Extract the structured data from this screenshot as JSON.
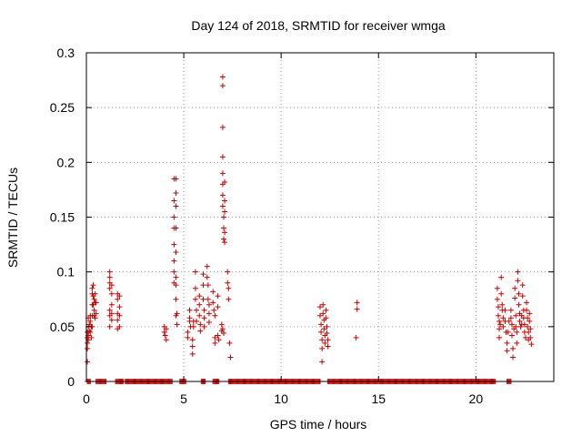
{
  "chart_data": {
    "type": "scatter",
    "title": "Day 124 of 2018, SRMTID for receiver wmga",
    "xlabel": "GPS time / hours",
    "ylabel": "SRMTID / TECUs",
    "xlim": [
      0,
      24
    ],
    "ylim": [
      0,
      0.3
    ],
    "xticks": [
      0,
      5,
      10,
      15,
      20
    ],
    "xtick_labels": [
      "0",
      "5",
      "10",
      "15",
      "20"
    ],
    "yticks": [
      0,
      0.05,
      0.1,
      0.15,
      0.2,
      0.25,
      0.3
    ],
    "ytick_labels": [
      "0",
      "0.05",
      "0.1",
      "0.15",
      "0.2",
      "0.25",
      "0.3"
    ],
    "grid": true,
    "marker": "+",
    "color": "#cc0000",
    "series": [
      {
        "name": "SRMTID",
        "points": [
          [
            0.05,
            0.045
          ],
          [
            0.05,
            0.04
          ],
          [
            0.05,
            0.035
          ],
          [
            0.05,
            0.03
          ],
          [
            0.05,
            0.018
          ],
          [
            0.1,
            0.058
          ],
          [
            0.1,
            0.05
          ],
          [
            0.1,
            0.042
          ],
          [
            0.1,
            0.038
          ],
          [
            0.15,
            0.052
          ],
          [
            0.15,
            0.046
          ],
          [
            0.2,
            0.06
          ],
          [
            0.2,
            0.055
          ],
          [
            0.2,
            0.045
          ],
          [
            0.25,
            0.05
          ],
          [
            0.25,
            0.04
          ],
          [
            0.3,
            0.085
          ],
          [
            0.3,
            0.08
          ],
          [
            0.3,
            0.07
          ],
          [
            0.3,
            0.06
          ],
          [
            0.3,
            0.05
          ],
          [
            0.35,
            0.088
          ],
          [
            0.35,
            0.078
          ],
          [
            0.35,
            0.07
          ],
          [
            0.4,
            0.075
          ],
          [
            0.4,
            0.065
          ],
          [
            0.4,
            0.06
          ],
          [
            0.45,
            0.08
          ],
          [
            0.45,
            0.072
          ],
          [
            0.45,
            0.058
          ],
          [
            0.5,
            0.072
          ],
          [
            0.5,
            0.062
          ],
          [
            1.2,
            0.1
          ],
          [
            1.2,
            0.095
          ],
          [
            1.2,
            0.09
          ],
          [
            1.2,
            0.085
          ],
          [
            1.2,
            0.065
          ],
          [
            1.2,
            0.06
          ],
          [
            1.2,
            0.05
          ],
          [
            1.3,
            0.088
          ],
          [
            1.3,
            0.08
          ],
          [
            1.3,
            0.07
          ],
          [
            1.3,
            0.062
          ],
          [
            1.3,
            0.056
          ],
          [
            1.6,
            0.08
          ],
          [
            1.6,
            0.075
          ],
          [
            1.6,
            0.062
          ],
          [
            1.6,
            0.056
          ],
          [
            1.6,
            0.048
          ],
          [
            1.7,
            0.078
          ],
          [
            1.7,
            0.068
          ],
          [
            1.7,
            0.06
          ],
          [
            1.7,
            0.05
          ],
          [
            4.0,
            0.05
          ],
          [
            4.0,
            0.045
          ],
          [
            4.05,
            0.042
          ],
          [
            4.1,
            0.048
          ],
          [
            4.1,
            0.038
          ],
          [
            4.5,
            0.185
          ],
          [
            4.5,
            0.165
          ],
          [
            4.5,
            0.15
          ],
          [
            4.5,
            0.14
          ],
          [
            4.5,
            0.125
          ],
          [
            4.5,
            0.11
          ],
          [
            4.5,
            0.1
          ],
          [
            4.5,
            0.09
          ],
          [
            4.6,
            0.185
          ],
          [
            4.6,
            0.172
          ],
          [
            4.6,
            0.16
          ],
          [
            4.6,
            0.14
          ],
          [
            4.6,
            0.118
          ],
          [
            4.6,
            0.095
          ],
          [
            4.6,
            0.088
          ],
          [
            4.6,
            0.075
          ],
          [
            4.6,
            0.06
          ],
          [
            4.65,
            0.062
          ],
          [
            4.65,
            0.052
          ],
          [
            5.2,
            0.045
          ],
          [
            5.2,
            0.04
          ],
          [
            5.3,
            0.065
          ],
          [
            5.3,
            0.058
          ],
          [
            5.3,
            0.055
          ],
          [
            5.35,
            0.05
          ],
          [
            5.45,
            0.038
          ],
          [
            5.45,
            0.032
          ],
          [
            5.45,
            0.025
          ],
          [
            5.5,
            0.055
          ],
          [
            5.5,
            0.05
          ],
          [
            5.6,
            0.1
          ],
          [
            5.6,
            0.085
          ],
          [
            5.6,
            0.075
          ],
          [
            5.65,
            0.065
          ],
          [
            5.65,
            0.055
          ],
          [
            5.8,
            0.078
          ],
          [
            5.8,
            0.07
          ],
          [
            5.8,
            0.06
          ],
          [
            5.85,
            0.052
          ],
          [
            5.85,
            0.046
          ],
          [
            6.0,
            0.098
          ],
          [
            6.0,
            0.088
          ],
          [
            6.0,
            0.075
          ],
          [
            6.05,
            0.065
          ],
          [
            6.05,
            0.058
          ],
          [
            6.05,
            0.05
          ],
          [
            6.2,
            0.105
          ],
          [
            6.2,
            0.095
          ],
          [
            6.25,
            0.088
          ],
          [
            6.25,
            0.075
          ],
          [
            6.3,
            0.07
          ],
          [
            6.3,
            0.062
          ],
          [
            6.3,
            0.054
          ],
          [
            6.5,
            0.082
          ],
          [
            6.5,
            0.072
          ],
          [
            6.55,
            0.065
          ],
          [
            6.6,
            0.06
          ],
          [
            6.6,
            0.04
          ],
          [
            6.6,
            0.035
          ],
          [
            6.75,
            0.078
          ],
          [
            6.75,
            0.068
          ],
          [
            6.75,
            0.042
          ],
          [
            6.8,
            0.038
          ],
          [
            7.0,
            0.278
          ],
          [
            7.0,
            0.27
          ],
          [
            7.0,
            0.232
          ],
          [
            7.0,
            0.205
          ],
          [
            7.0,
            0.19
          ],
          [
            7.0,
            0.18
          ],
          [
            7.0,
            0.17
          ],
          [
            7.0,
            0.16
          ],
          [
            7.05,
            0.15
          ],
          [
            7.05,
            0.14
          ],
          [
            7.05,
            0.13
          ],
          [
            6.95,
            0.052
          ],
          [
            6.95,
            0.046
          ],
          [
            7.0,
            0.048
          ],
          [
            7.05,
            0.044
          ],
          [
            7.1,
            0.182
          ],
          [
            7.1,
            0.165
          ],
          [
            7.1,
            0.155
          ],
          [
            7.1,
            0.136
          ],
          [
            7.1,
            0.127
          ],
          [
            7.25,
            0.1
          ],
          [
            7.25,
            0.09
          ],
          [
            7.3,
            0.085
          ],
          [
            7.3,
            0.075
          ],
          [
            7.35,
            0.035
          ],
          [
            7.4,
            0.022
          ],
          [
            12.0,
            0.068
          ],
          [
            12.0,
            0.06
          ],
          [
            12.05,
            0.052
          ],
          [
            12.05,
            0.045
          ],
          [
            12.1,
            0.038
          ],
          [
            12.1,
            0.03
          ],
          [
            12.1,
            0.018
          ],
          [
            12.15,
            0.07
          ],
          [
            12.15,
            0.062
          ],
          [
            12.2,
            0.056
          ],
          [
            12.2,
            0.048
          ],
          [
            12.25,
            0.042
          ],
          [
            12.25,
            0.035
          ],
          [
            12.3,
            0.065
          ],
          [
            12.3,
            0.058
          ],
          [
            12.35,
            0.05
          ],
          [
            12.35,
            0.044
          ],
          [
            12.4,
            0.038
          ],
          [
            12.4,
            0.032
          ],
          [
            13.9,
            0.072
          ],
          [
            13.9,
            0.066
          ],
          [
            13.85,
            0.04
          ],
          [
            21.1,
            0.085
          ],
          [
            21.1,
            0.075
          ],
          [
            21.15,
            0.068
          ],
          [
            21.15,
            0.06
          ],
          [
            21.2,
            0.055
          ],
          [
            21.2,
            0.048
          ],
          [
            21.2,
            0.04
          ],
          [
            21.3,
            0.095
          ],
          [
            21.3,
            0.08
          ],
          [
            21.35,
            0.07
          ],
          [
            21.35,
            0.065
          ],
          [
            21.4,
            0.058
          ],
          [
            21.4,
            0.05
          ],
          [
            21.5,
            0.065
          ],
          [
            21.5,
            0.055
          ],
          [
            21.55,
            0.045
          ],
          [
            21.6,
            0.035
          ],
          [
            21.6,
            0.028
          ],
          [
            21.8,
            0.065
          ],
          [
            21.8,
            0.058
          ],
          [
            21.85,
            0.052
          ],
          [
            21.85,
            0.042
          ],
          [
            21.9,
            0.03
          ],
          [
            21.9,
            0.022
          ],
          [
            22.0,
            0.085
          ],
          [
            22.0,
            0.076
          ],
          [
            22.05,
            0.06
          ],
          [
            22.05,
            0.05
          ],
          [
            22.1,
            0.045
          ],
          [
            22.1,
            0.035
          ],
          [
            22.15,
            0.1
          ],
          [
            22.15,
            0.092
          ],
          [
            22.2,
            0.08
          ],
          [
            22.2,
            0.07
          ],
          [
            22.25,
            0.062
          ],
          [
            22.25,
            0.055
          ],
          [
            22.3,
            0.05
          ],
          [
            22.4,
            0.088
          ],
          [
            22.4,
            0.078
          ],
          [
            22.45,
            0.065
          ],
          [
            22.45,
            0.058
          ],
          [
            22.5,
            0.052
          ],
          [
            22.5,
            0.045
          ],
          [
            22.55,
            0.04
          ],
          [
            22.6,
            0.072
          ],
          [
            22.6,
            0.065
          ],
          [
            22.65,
            0.058
          ],
          [
            22.65,
            0.05
          ],
          [
            22.7,
            0.045
          ],
          [
            22.7,
            0.038
          ],
          [
            22.75,
            0.062
          ],
          [
            22.75,
            0.055
          ],
          [
            22.8,
            0.048
          ],
          [
            22.8,
            0.04
          ],
          [
            22.85,
            0.034
          ],
          [
            22.35,
            0.06
          ],
          [
            22.35,
            0.052
          ],
          [
            21.95,
            0.048
          ],
          [
            21.7,
            0.055
          ],
          [
            21.65,
            0.045
          ],
          [
            21.25,
            0.052
          ]
        ],
        "zero_ranges": [
          [
            0.05,
            0.2
          ],
          [
            0.5,
            1.0
          ],
          [
            1.5,
            1.9
          ],
          [
            2.0,
            4.4
          ],
          [
            4.8,
            5.1
          ],
          [
            5.9,
            6.1
          ],
          [
            6.5,
            6.8
          ],
          [
            7.3,
            12.0
          ],
          [
            12.4,
            21.0
          ],
          [
            21.6,
            21.8
          ]
        ]
      }
    ]
  }
}
